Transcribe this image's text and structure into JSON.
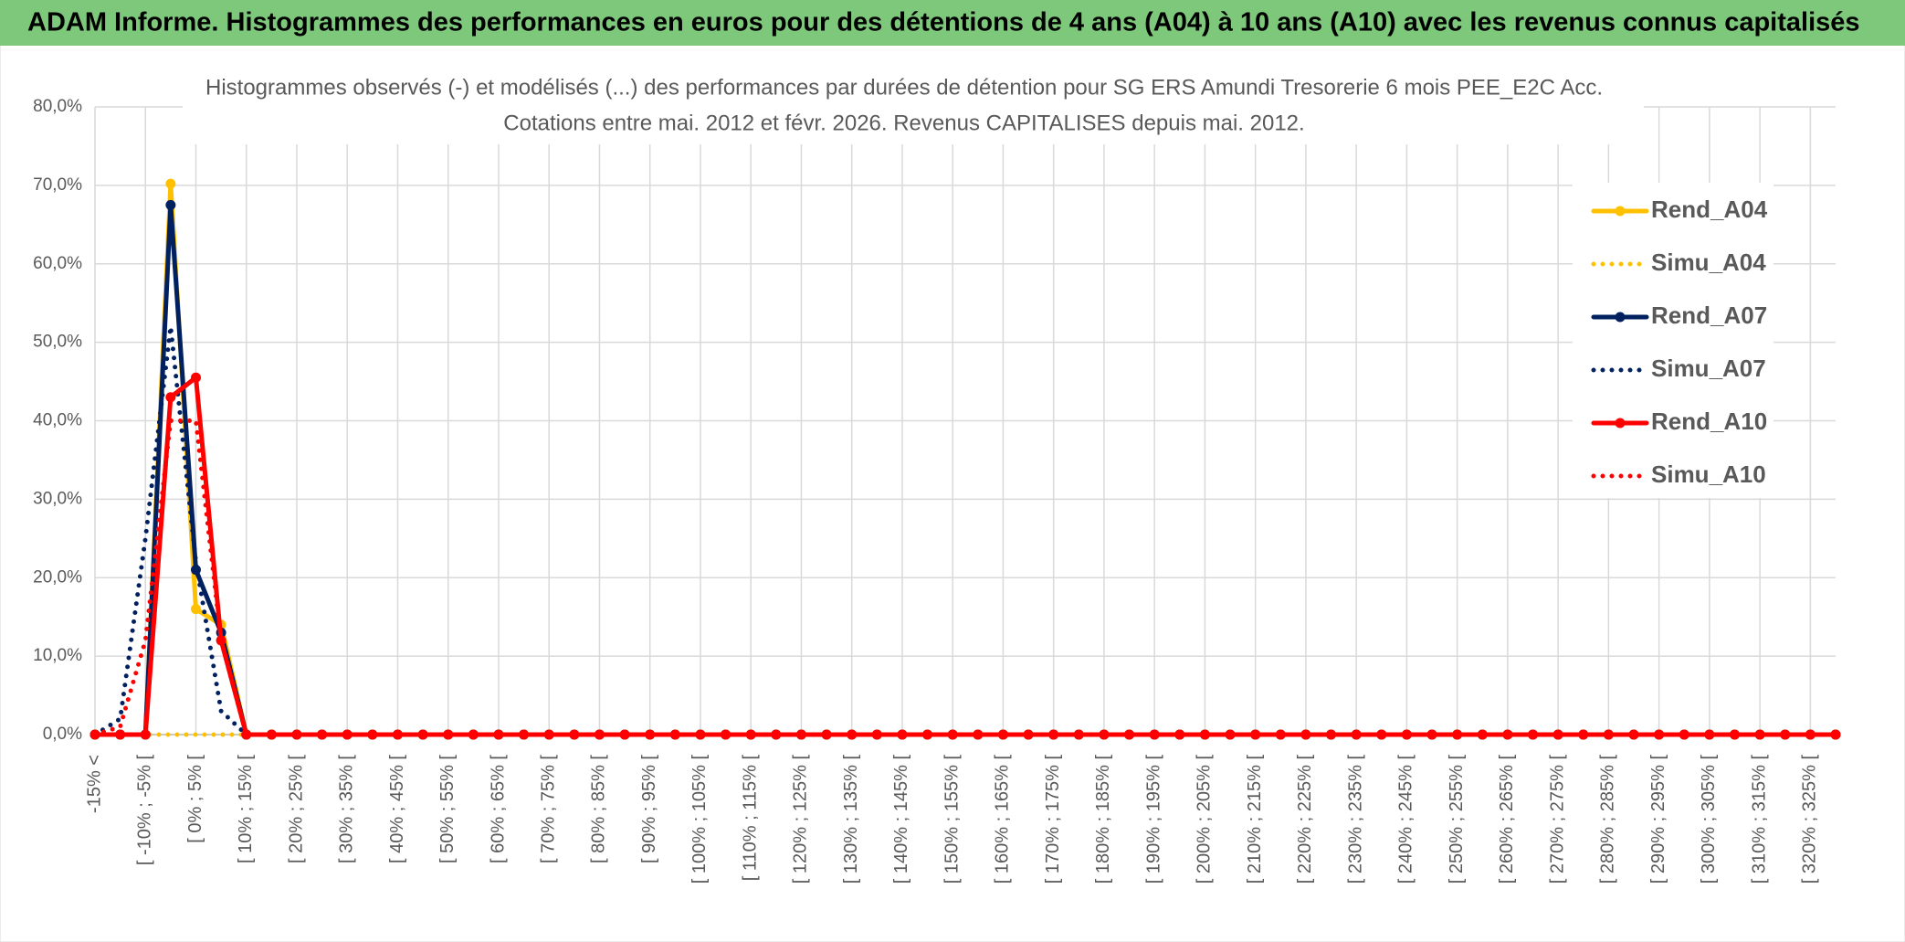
{
  "header": {
    "title": "ADAM Informe. Histogrammes des performances en euros pour des détentions de 4 ans (A04) à 10 ans (A10) avec les revenus connus capitalisés"
  },
  "chart_data": {
    "type": "line",
    "title": "Histogrammes observés (-) et modélisés (...) des performances par durées de détention pour SG ERS Amundi Tresorerie 6 mois PEE_E2C Acc.",
    "subtitle": "Cotations entre mai. 2012 et févr. 2026. Revenus CAPITALISES depuis mai. 2012.",
    "categories": [
      "-15% <",
      null,
      "[ -10% ; -5% [",
      null,
      "[ 0% ; 5% [",
      null,
      "[ 10% ; 15% [",
      null,
      "[ 20% ; 25% [",
      null,
      "[ 30% ; 35% [",
      null,
      "[ 40% ; 45% [",
      null,
      "[ 50% ; 55% [",
      null,
      "[ 60% ; 65% [",
      null,
      "[ 70% ; 75% [",
      null,
      "[ 80% ; 85% [",
      null,
      "[ 90% ; 95% [",
      null,
      "[ 100% ; 105% [",
      null,
      "[ 110% ; 115% [",
      null,
      "[ 120% ; 125% [",
      null,
      "[ 130% ; 135% [",
      null,
      "[ 140% ; 145% [",
      null,
      "[ 150% ; 155% [",
      null,
      "[ 160% ; 165% [",
      null,
      "[ 170% ; 175% [",
      null,
      "[ 180% ; 185% [",
      null,
      "[ 190% ; 195% [",
      null,
      "[ 200% ; 205% [",
      null,
      "[ 210% ; 215% [",
      null,
      "[ 220% ; 225% [",
      null,
      "[ 230% ; 235% [",
      null,
      "[ 240% ; 245% [",
      null,
      "[ 250% ; 255% [",
      null,
      "[ 260% ; 265% [",
      null,
      "[ 270% ; 275% [",
      null,
      "[ 280% ; 285% [",
      null,
      "[ 290% ; 295% [",
      null,
      "[ 300% ; 305% [",
      null,
      "[ 310% ; 315% [",
      null,
      "[ 320% ; 325% [",
      null
    ],
    "series": [
      {
        "name": "Rend_A04",
        "color": "#FFC000",
        "line_style": "solid",
        "markers": true,
        "values": [
          0,
          0,
          0,
          70.2,
          16,
          14,
          0,
          0,
          0,
          0,
          0,
          0,
          0,
          0,
          0,
          0,
          0,
          0,
          0,
          0,
          0,
          0,
          0,
          0,
          0,
          0,
          0,
          0,
          0,
          0,
          0,
          0,
          0,
          0,
          0,
          0,
          0,
          0,
          0,
          0,
          0,
          0,
          0,
          0,
          0,
          0,
          0,
          0,
          0,
          0,
          0,
          0,
          0,
          0,
          0,
          0,
          0,
          0,
          0,
          0,
          0,
          0,
          0,
          0,
          0,
          0,
          0,
          0,
          0,
          0
        ]
      },
      {
        "name": "Simu_A04",
        "color": "#FFC000",
        "line_style": "dotted",
        "markers": false,
        "values": [
          0,
          0,
          0,
          0,
          0,
          0,
          0,
          0,
          0,
          0,
          0,
          0,
          0,
          0,
          0,
          0,
          0,
          0,
          0,
          0,
          0,
          0,
          0,
          0,
          0,
          0,
          0,
          0,
          0,
          0,
          0,
          0,
          0,
          0,
          0,
          0,
          0,
          0,
          0,
          0,
          0,
          0,
          0,
          0,
          0,
          0,
          0,
          0,
          0,
          0,
          0,
          0,
          0,
          0,
          0,
          0,
          0,
          0,
          0,
          0,
          0,
          0,
          0,
          0,
          0,
          0,
          0,
          0,
          0,
          0
        ]
      },
      {
        "name": "Rend_A07",
        "color": "#002060",
        "line_style": "solid",
        "markers": true,
        "values": [
          0,
          0,
          0,
          67.5,
          21,
          13,
          0,
          0,
          0,
          0,
          0,
          0,
          0,
          0,
          0,
          0,
          0,
          0,
          0,
          0,
          0,
          0,
          0,
          0,
          0,
          0,
          0,
          0,
          0,
          0,
          0,
          0,
          0,
          0,
          0,
          0,
          0,
          0,
          0,
          0,
          0,
          0,
          0,
          0,
          0,
          0,
          0,
          0,
          0,
          0,
          0,
          0,
          0,
          0,
          0,
          0,
          0,
          0,
          0,
          0,
          0,
          0,
          0,
          0,
          0,
          0,
          0,
          0,
          0,
          0
        ]
      },
      {
        "name": "Simu_A07",
        "color": "#002060",
        "line_style": "dotted",
        "markers": false,
        "values": [
          0,
          2,
          25,
          52,
          22,
          3,
          0,
          0,
          0,
          0,
          0,
          0,
          0,
          0,
          0,
          0,
          0,
          0,
          0,
          0,
          0,
          0,
          0,
          0,
          0,
          0,
          0,
          0,
          0,
          0,
          0,
          0,
          0,
          0,
          0,
          0,
          0,
          0,
          0,
          0,
          0,
          0,
          0,
          0,
          0,
          0,
          0,
          0,
          0,
          0,
          0,
          0,
          0,
          0,
          0,
          0,
          0,
          0,
          0,
          0,
          0,
          0,
          0,
          0,
          0,
          0,
          0,
          0,
          0,
          0
        ]
      },
      {
        "name": "Rend_A10",
        "color": "#FF0000",
        "line_style": "solid",
        "markers": true,
        "values": [
          0,
          0,
          0,
          43,
          45.5,
          12,
          0,
          0,
          0,
          0,
          0,
          0,
          0,
          0,
          0,
          0,
          0,
          0,
          0,
          0,
          0,
          0,
          0,
          0,
          0,
          0,
          0,
          0,
          0,
          0,
          0,
          0,
          0,
          0,
          0,
          0,
          0,
          0,
          0,
          0,
          0,
          0,
          0,
          0,
          0,
          0,
          0,
          0,
          0,
          0,
          0,
          0,
          0,
          0,
          0,
          0,
          0,
          0,
          0,
          0,
          0,
          0,
          0,
          0,
          0,
          0,
          0,
          0,
          0,
          0
        ]
      },
      {
        "name": "Simu_A10",
        "color": "#FF0000",
        "line_style": "dotted",
        "markers": false,
        "values": [
          0,
          1,
          12,
          40,
          40,
          12,
          0,
          0,
          0,
          0,
          0,
          0,
          0,
          0,
          0,
          0,
          0,
          0,
          0,
          0,
          0,
          0,
          0,
          0,
          0,
          0,
          0,
          0,
          0,
          0,
          0,
          0,
          0,
          0,
          0,
          0,
          0,
          0,
          0,
          0,
          0,
          0,
          0,
          0,
          0,
          0,
          0,
          0,
          0,
          0,
          0,
          0,
          0,
          0,
          0,
          0,
          0,
          0,
          0,
          0,
          0,
          0,
          0,
          0,
          0,
          0,
          0,
          0,
          0,
          0
        ]
      }
    ],
    "ylim": [
      0,
      80
    ],
    "yticks": [
      {
        "value": 0,
        "label": "0,0%"
      },
      {
        "value": 10,
        "label": "10,0%"
      },
      {
        "value": 20,
        "label": "20,0%"
      },
      {
        "value": 30,
        "label": "30,0%"
      },
      {
        "value": 40,
        "label": "40,0%"
      },
      {
        "value": 50,
        "label": "50,0%"
      },
      {
        "value": 60,
        "label": "60,0%"
      },
      {
        "value": 70,
        "label": "70,0%"
      },
      {
        "value": 80,
        "label": "80,0%"
      }
    ],
    "grid": true,
    "legend": "right"
  }
}
